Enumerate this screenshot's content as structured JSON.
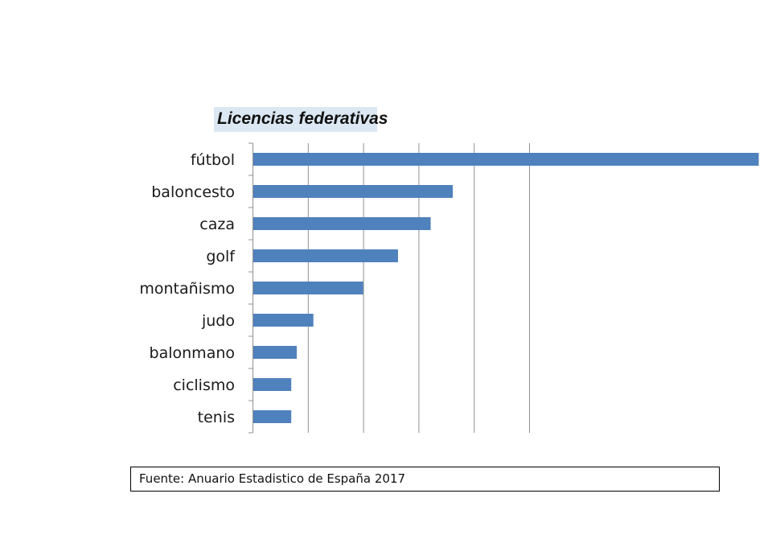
{
  "chart_data": {
    "type": "bar",
    "orientation": "horizontal",
    "title": "Licencias federativas",
    "categories": [
      "fútbol",
      "baloncesto",
      "caza",
      "golf",
      "montañismo",
      "judo",
      "balonmano",
      "ciclismo",
      "tenis"
    ],
    "values": [
      915,
      362,
      322,
      263,
      200,
      110,
      80,
      70,
      70
    ],
    "xlim": [
      0,
      1000
    ],
    "grid": "vertical",
    "bar_color": "#4f81bd",
    "grid_color": "#909090",
    "legend": "none"
  },
  "source": {
    "text": "Fuente: Anuario Estadistico de España 2017"
  }
}
